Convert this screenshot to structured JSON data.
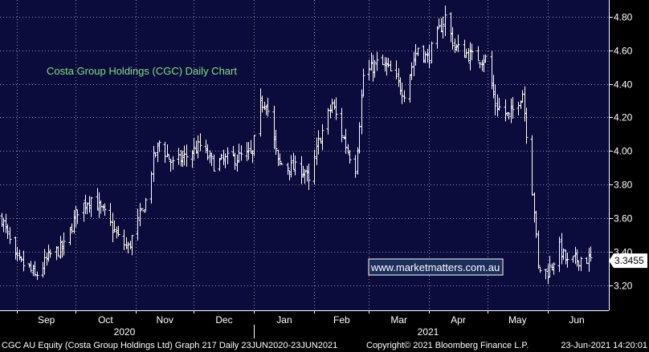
{
  "chart_data": {
    "type": "ohlc",
    "title": "Costa Group Holdings (CGC) Daily Chart",
    "watermark": "www.marketmatters.com.au",
    "y_ticks": [
      "4.80",
      "4.60",
      "4.40",
      "4.20",
      "4.00",
      "3.80",
      "3.60",
      "3.40",
      "3.20"
    ],
    "ylim": [
      3.05,
      4.9
    ],
    "last_price_label": "3.3455",
    "last_price": 3.3455,
    "x_month_labels": [
      "Sep",
      "Oct",
      "Nov",
      "Dec",
      "Jan",
      "Feb",
      "Mar",
      "Apr",
      "May",
      "Jun"
    ],
    "x_year_labels": [
      "2020",
      "2021"
    ],
    "footer": {
      "left": "CGC AU Equity (Costa Group Holdings Ltd) Graph 217  Daily 23JUN2020-23JUN2021",
      "center": "Copyright© 2021 Bloomberg Finance L.P.",
      "right": "23-Jun-2021 14:20:01"
    },
    "colors": {
      "background": "#0c0c3c",
      "grid": "#c8c8d8",
      "bars": "#ffffff",
      "title": "#7fe07f",
      "watermark_bg": "#1c2f5a",
      "watermark_text": "#ffffff"
    },
    "price_path": [
      {
        "date": "2020-08-24",
        "close": 3.6
      },
      {
        "date": "2020-08-31",
        "close": 3.35
      },
      {
        "date": "2020-09-07",
        "close": 3.3
      },
      {
        "date": "2020-09-10",
        "close": 3.25
      },
      {
        "date": "2020-09-18",
        "close": 3.38
      },
      {
        "date": "2020-09-25",
        "close": 3.43
      },
      {
        "date": "2020-10-02",
        "close": 3.65
      },
      {
        "date": "2020-10-09",
        "close": 3.72
      },
      {
        "date": "2020-10-16",
        "close": 3.62
      },
      {
        "date": "2020-10-23",
        "close": 3.48
      },
      {
        "date": "2020-10-28",
        "close": 3.42
      },
      {
        "date": "2020-11-06",
        "close": 3.7
      },
      {
        "date": "2020-11-10",
        "close": 3.95
      },
      {
        "date": "2020-11-13",
        "close": 4.05
      },
      {
        "date": "2020-11-20",
        "close": 3.92
      },
      {
        "date": "2020-11-27",
        "close": 3.97
      },
      {
        "date": "2020-12-04",
        "close": 4.03
      },
      {
        "date": "2020-12-11",
        "close": 3.92
      },
      {
        "date": "2020-12-18",
        "close": 3.95
      },
      {
        "date": "2020-12-31",
        "close": 3.98
      },
      {
        "date": "2021-01-04",
        "close": 4.28
      },
      {
        "date": "2021-01-07",
        "close": 4.3
      },
      {
        "date": "2021-01-13",
        "close": 3.93
      },
      {
        "date": "2021-01-20",
        "close": 3.9
      },
      {
        "date": "2021-01-27",
        "close": 3.88
      },
      {
        "date": "2021-01-29",
        "close": 3.8
      },
      {
        "date": "2021-02-03",
        "close": 4.05
      },
      {
        "date": "2021-02-10",
        "close": 4.28
      },
      {
        "date": "2021-02-18",
        "close": 4.0
      },
      {
        "date": "2021-02-22",
        "close": 3.9
      },
      {
        "date": "2021-02-26",
        "close": 4.45
      },
      {
        "date": "2021-03-05",
        "close": 4.52
      },
      {
        "date": "2021-03-10",
        "close": 4.5
      },
      {
        "date": "2021-03-19",
        "close": 4.35
      },
      {
        "date": "2021-03-26",
        "close": 4.62
      },
      {
        "date": "2021-03-31",
        "close": 4.55
      },
      {
        "date": "2021-04-09",
        "close": 4.8
      },
      {
        "date": "2021-04-14",
        "close": 4.62
      },
      {
        "date": "2021-04-23",
        "close": 4.56
      },
      {
        "date": "2021-04-30",
        "close": 4.55
      },
      {
        "date": "2021-05-05",
        "close": 4.28
      },
      {
        "date": "2021-05-12",
        "close": 4.2
      },
      {
        "date": "2021-05-19",
        "close": 4.35
      },
      {
        "date": "2021-05-25",
        "close": 3.65
      },
      {
        "date": "2021-05-27",
        "close": 3.3
      },
      {
        "date": "2021-06-01",
        "close": 3.28
      },
      {
        "date": "2021-06-07",
        "close": 3.42
      },
      {
        "date": "2021-06-11",
        "close": 3.33
      },
      {
        "date": "2021-06-18",
        "close": 3.36
      },
      {
        "date": "2021-06-23",
        "close": 3.35
      }
    ]
  }
}
